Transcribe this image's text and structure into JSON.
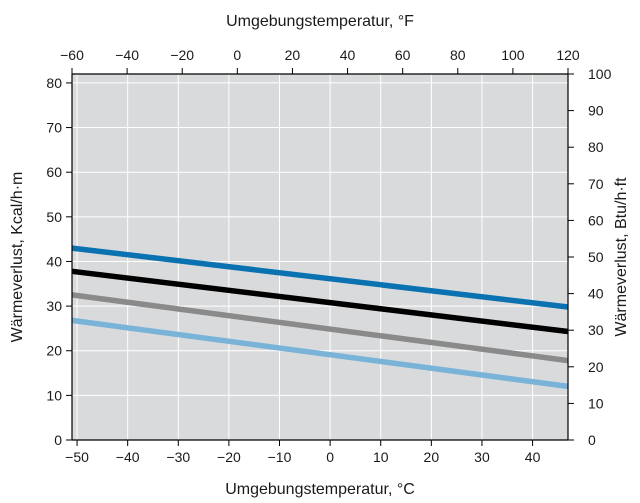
{
  "chart_data": {
    "type": "line",
    "title": "",
    "xlabel": "Umgebungstemperatur, °C",
    "x2label": "Umgebungstemperatur, °F",
    "ylabel": "Wärmeverlust, Kcal/h·m",
    "y2label": "Wärmeverlust, Btu/h·ft",
    "xlim": [
      -51,
      47
    ],
    "ylim": [
      0,
      82
    ],
    "x2lim": [
      -60,
      120
    ],
    "y2lim": [
      0,
      100
    ],
    "x_ticks": [
      -50,
      -40,
      -30,
      -20,
      -10,
      0,
      10,
      20,
      30,
      40
    ],
    "y_ticks": [
      0,
      10,
      20,
      30,
      40,
      50,
      60,
      70,
      80
    ],
    "x2_ticks": [
      -60,
      -40,
      -20,
      0,
      20,
      40,
      60,
      80,
      100,
      120
    ],
    "y2_ticks": [
      0,
      10,
      20,
      30,
      40,
      50,
      60,
      70,
      80,
      90,
      100
    ],
    "grid": true,
    "background_color": "#d9dadc",
    "grid_color": "#ffffff",
    "series": [
      {
        "color": "#0a72b0",
        "x": [
          -51,
          47
        ],
        "y": [
          43.0,
          29.8
        ]
      },
      {
        "color": "#000000",
        "x": [
          -51,
          47
        ],
        "y": [
          37.8,
          24.3
        ]
      },
      {
        "color": "#8a8a8a",
        "x": [
          -51,
          47
        ],
        "y": [
          32.5,
          17.8
        ]
      },
      {
        "color": "#7ab3d8",
        "x": [
          -51,
          47
        ],
        "y": [
          26.8,
          12.0
        ]
      }
    ]
  }
}
